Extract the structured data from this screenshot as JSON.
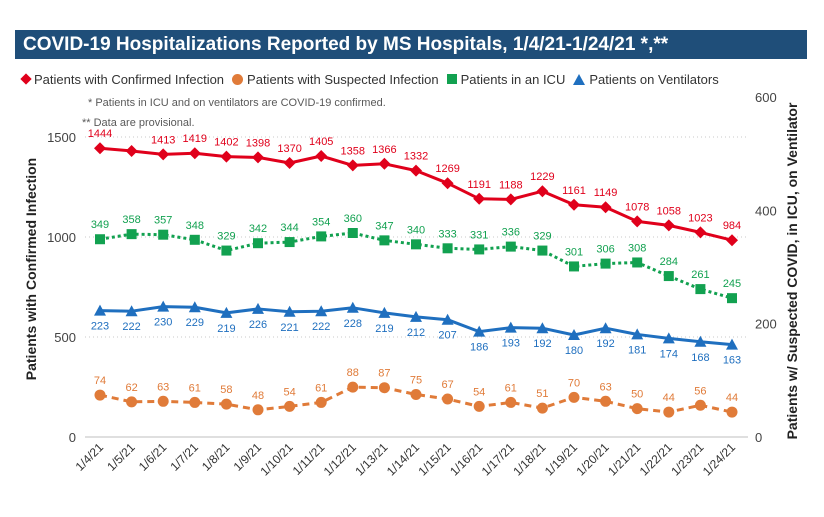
{
  "title": "COVID-19 Hospitalizations Reported by MS Hospitals, 1/4/21-1/24/21 *,**",
  "notes": {
    "icu_note": "* Patients in ICU and on ventilators are COVID-19 confirmed.",
    "provisional_note": "** Data are provisional."
  },
  "colors": {
    "title_bg": "#1f4e79",
    "confirmed": "#e0001b",
    "suspected": "#e07b39",
    "icu": "#12a150",
    "ventilators": "#1f6fbf"
  },
  "chart_data": {
    "type": "line",
    "categories": [
      "1/4/21",
      "1/5/21",
      "1/6/21",
      "1/7/21",
      "1/8/21",
      "1/9/21",
      "1/10/21",
      "1/11/21",
      "1/12/21",
      "1/13/21",
      "1/14/21",
      "1/15/21",
      "1/16/21",
      "1/17/21",
      "1/18/21",
      "1/19/21",
      "1/20/21",
      "1/21/21",
      "1/22/21",
      "1/23/21",
      "1/24/21"
    ],
    "ylabel_left": "Patients with Confirmed Infection",
    "ylabel_right": "Patients w/ Suspected COVID, in ICU, on Ventilator",
    "ylim_left": [
      0,
      1700
    ],
    "ylim_right": [
      0,
      600
    ],
    "yticks_left": [
      0,
      500,
      1000,
      1500
    ],
    "yticks_right": [
      0,
      200,
      400,
      600
    ],
    "grid": "dotted horizontal",
    "legend_position": "top",
    "series": [
      {
        "name": "Patients with Confirmed Infection",
        "axis": "left",
        "marker": "diamond",
        "line": "solid",
        "color": "#e0001b",
        "label_position": "above",
        "values": [
          1444,
          1430,
          1413,
          1419,
          1402,
          1398,
          1370,
          1405,
          1358,
          1366,
          1332,
          1269,
          1191,
          1188,
          1229,
          1161,
          1149,
          1078,
          1058,
          1023,
          984
        ],
        "labels": [
          "1444",
          "",
          "1413",
          "1419",
          "1402",
          "1398",
          "1370",
          "1405",
          "1358",
          "1366",
          "1332",
          "1269",
          "1191",
          "1188",
          "1229",
          "1161",
          "1149",
          "1078",
          "1058",
          "1023",
          "984"
        ]
      },
      {
        "name": "Patients with Suspected Infection",
        "axis": "right",
        "marker": "circle",
        "line": "dashed",
        "color": "#e07b39",
        "label_position": "above",
        "values": [
          74,
          62,
          63,
          61,
          58,
          48,
          54,
          61,
          88,
          87,
          75,
          67,
          54,
          61,
          51,
          70,
          63,
          50,
          44,
          56,
          44
        ],
        "labels": [
          "74",
          "62",
          "63",
          "61",
          "58",
          "48",
          "54",
          "61",
          "88",
          "87",
          "75",
          "67",
          "54",
          "61",
          "51",
          "70",
          "63",
          "50",
          "44",
          "56",
          "44"
        ]
      },
      {
        "name": "Patients in an ICU",
        "axis": "right",
        "marker": "square",
        "line": "dotted",
        "color": "#12a150",
        "label_position": "above",
        "values": [
          349,
          358,
          357,
          348,
          329,
          342,
          344,
          354,
          360,
          347,
          340,
          333,
          331,
          336,
          329,
          301,
          306,
          308,
          284,
          261,
          245
        ],
        "labels": [
          "349",
          "358",
          "357",
          "348",
          "329",
          "342",
          "344",
          "354",
          "360",
          "347",
          "340",
          "333",
          "331",
          "336",
          "329",
          "301",
          "306",
          "308",
          "284",
          "261",
          "245"
        ]
      },
      {
        "name": "Patients on Ventilators",
        "axis": "right",
        "marker": "triangle",
        "line": "solid",
        "color": "#1f6fbf",
        "label_position": "below",
        "values": [
          223,
          222,
          230,
          229,
          219,
          226,
          221,
          222,
          228,
          219,
          212,
          207,
          186,
          193,
          192,
          180,
          192,
          181,
          174,
          168,
          163
        ],
        "labels": [
          "223",
          "222",
          "230",
          "229",
          "219",
          "226",
          "221",
          "222",
          "228",
          "219",
          "212",
          "207",
          "186",
          "193",
          "192",
          "180",
          "192",
          "181",
          "174",
          "168",
          "163"
        ]
      }
    ]
  }
}
